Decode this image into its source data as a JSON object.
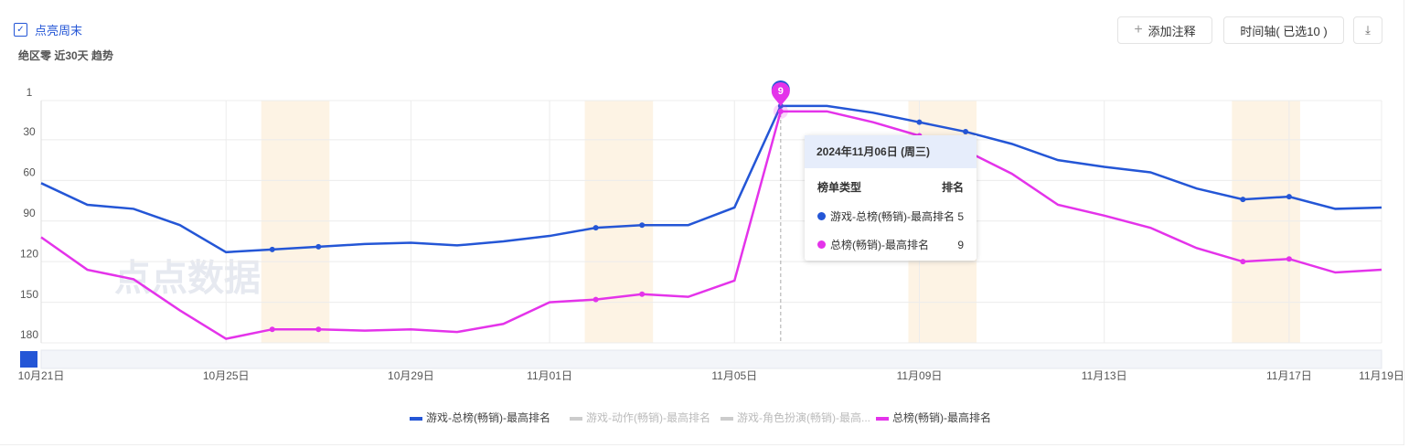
{
  "header": {
    "checkbox_label": "点亮周末",
    "subtitle": "绝区零 近30天 趋势",
    "buttons": [
      "添加注释",
      "时间轴( 已选10 )"
    ]
  },
  "watermark": "点点数据",
  "chart_data": {
    "type": "line",
    "categories": [
      "10月21日",
      null,
      null,
      null,
      "10月25日",
      null,
      null,
      null,
      "10月29日",
      null,
      null,
      "11月01日",
      null,
      null,
      null,
      "11月05日",
      null,
      null,
      null,
      "11月09日",
      null,
      null,
      null,
      "11月13日",
      null,
      null,
      null,
      "11月17日",
      null,
      "11月19日"
    ],
    "ylim": [
      1,
      180
    ],
    "y_inverted": true,
    "yticks": [
      1,
      30,
      60,
      90,
      120,
      150,
      180
    ],
    "grid": true,
    "weekend_bands": [
      [
        5,
        6
      ],
      [
        12,
        13
      ],
      [
        19,
        20
      ],
      [
        26,
        27
      ]
    ],
    "series": [
      {
        "name": "游戏-总榜(畅销)-最高排名",
        "color": "#2456d6",
        "values": [
          62,
          78,
          81,
          93,
          113,
          111,
          109,
          107,
          106,
          108,
          105,
          101,
          95,
          93,
          93,
          80,
          5,
          5,
          10,
          17,
          24,
          33,
          45,
          50,
          54,
          66,
          74,
          72,
          81,
          80
        ]
      },
      {
        "name": "总榜(畅销)-最高排名",
        "color": "#e433ea",
        "values": [
          102,
          126,
          133,
          156,
          177,
          170,
          170,
          171,
          170,
          172,
          166,
          150,
          148,
          144,
          146,
          134,
          9,
          9,
          17,
          27,
          38,
          55,
          78,
          86,
          95,
          110,
          120,
          118,
          128,
          126
        ]
      }
    ],
    "inactive_legend": [
      "游戏-动作(畅销)-最高排名",
      "游戏-角色扮演(畅销)-最高..."
    ],
    "legend_order": [
      "s0",
      "i0",
      "i1",
      "s1"
    ],
    "tooltip": {
      "index": 16,
      "title": "2024年11月06日 (周三)",
      "col_type": "榜单类型",
      "col_rank": "排名"
    }
  }
}
